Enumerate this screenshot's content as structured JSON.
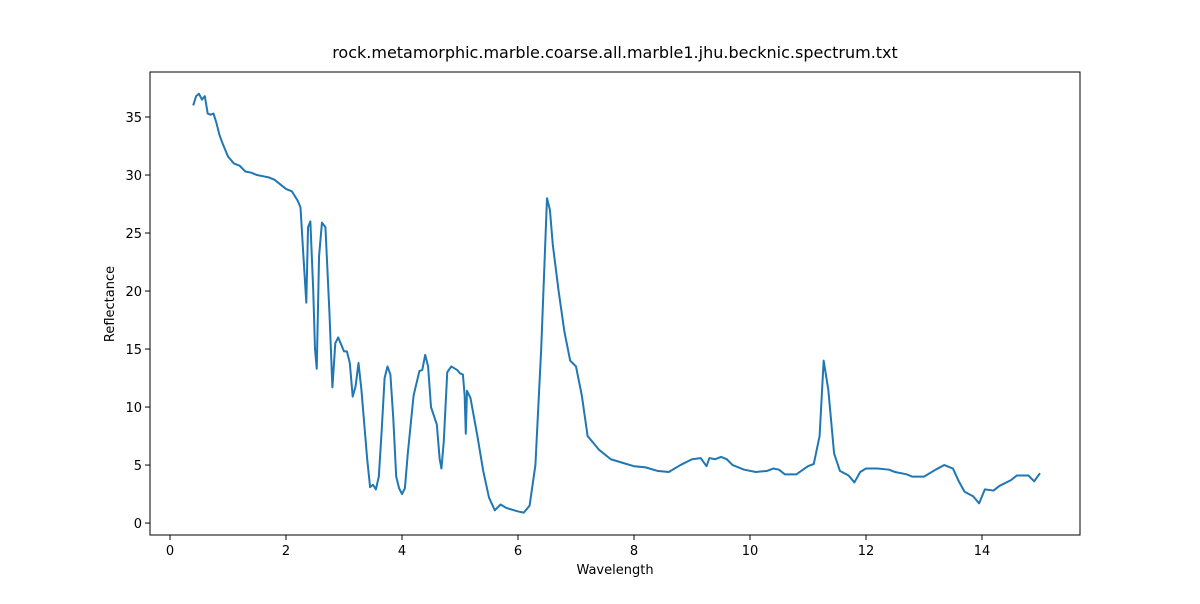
{
  "chart_data": {
    "type": "line",
    "title": "rock.metamorphic.marble.coarse.all.marble1.jhu.becknic.spectrum.txt",
    "x_label": "Wavelength",
    "y_label": "Reflectance",
    "xlim": [
      -0.345,
      15.69
    ],
    "ylim": [
      -1.03,
      38.88
    ],
    "xticks": [
      0,
      2,
      4,
      6,
      8,
      10,
      12,
      14
    ],
    "yticks": [
      0,
      5,
      10,
      15,
      20,
      25,
      30,
      35
    ],
    "series": [
      {
        "color": "#1f77b4",
        "x": [
          0.4,
          0.45,
          0.5,
          0.55,
          0.6,
          0.65,
          0.7,
          0.75,
          0.8,
          0.85,
          0.9,
          1.0,
          1.1,
          1.2,
          1.3,
          1.4,
          1.5,
          1.6,
          1.7,
          1.8,
          1.9,
          2.0,
          2.1,
          2.2,
          2.25,
          2.3,
          2.35,
          2.38,
          2.42,
          2.47,
          2.5,
          2.53,
          2.57,
          2.62,
          2.68,
          2.75,
          2.8,
          2.85,
          2.9,
          3.0,
          3.05,
          3.1,
          3.15,
          3.2,
          3.25,
          3.3,
          3.4,
          3.45,
          3.5,
          3.55,
          3.6,
          3.65,
          3.7,
          3.75,
          3.8,
          3.85,
          3.9,
          3.95,
          4.0,
          4.05,
          4.1,
          4.2,
          4.3,
          4.35,
          4.4,
          4.45,
          4.5,
          4.6,
          4.65,
          4.68,
          4.72,
          4.78,
          4.85,
          4.95,
          5.0,
          5.05,
          5.08,
          5.1,
          5.12,
          5.18,
          5.3,
          5.4,
          5.5,
          5.6,
          5.7,
          5.8,
          6.0,
          6.1,
          6.2,
          6.3,
          6.4,
          6.5,
          6.55,
          6.6,
          6.7,
          6.8,
          6.9,
          7.0,
          7.1,
          7.2,
          7.4,
          7.6,
          7.8,
          8.0,
          8.2,
          8.4,
          8.6,
          8.8,
          9.0,
          9.15,
          9.25,
          9.3,
          9.4,
          9.5,
          9.6,
          9.7,
          9.9,
          10.1,
          10.3,
          10.4,
          10.5,
          10.6,
          10.8,
          11.0,
          11.1,
          11.2,
          11.27,
          11.35,
          11.45,
          11.55,
          11.7,
          11.8,
          11.9,
          12.0,
          12.2,
          12.4,
          12.5,
          12.7,
          12.8,
          13.0,
          13.2,
          13.35,
          13.5,
          13.6,
          13.7,
          13.85,
          13.95,
          14.05,
          14.2,
          14.3,
          14.5,
          14.6,
          14.8,
          14.9,
          15.0
        ],
        "values": [
          36,
          36.8,
          37,
          36.5,
          36.8,
          35.3,
          35.2,
          35.3,
          34.5,
          33.5,
          32.8,
          31.6,
          31,
          30.8,
          30.3,
          30.2,
          30,
          29.9,
          29.8,
          29.6,
          29.2,
          28.8,
          28.6,
          27.8,
          27.2,
          23,
          19,
          25.5,
          26,
          20,
          15,
          13.3,
          23,
          25.9,
          25.5,
          18,
          11.7,
          15.5,
          16,
          14.8,
          14.8,
          13.8,
          10.9,
          11.8,
          13.8,
          11.5,
          5.5,
          3.1,
          3.3,
          2.9,
          4,
          8,
          12.5,
          13.5,
          12.8,
          9,
          4,
          3,
          2.5,
          3,
          6,
          11,
          13.1,
          13.2,
          14.5,
          13.5,
          10,
          8.5,
          5.5,
          4.7,
          7,
          13,
          13.5,
          13.2,
          12.9,
          12.8,
          11,
          7.7,
          11.4,
          10.8,
          7.5,
          4.5,
          2.2,
          1.1,
          1.6,
          1.3,
          1.0,
          0.9,
          1.5,
          5,
          15,
          28,
          27,
          24,
          20,
          16.5,
          14,
          13.5,
          11,
          7.5,
          6.3,
          5.5,
          5.2,
          4.9,
          4.8,
          4.5,
          4.4,
          5,
          5.5,
          5.6,
          4.9,
          5.6,
          5.5,
          5.7,
          5.5,
          5,
          4.6,
          4.4,
          4.5,
          4.7,
          4.6,
          4.2,
          4.2,
          4.9,
          5.1,
          7.5,
          14,
          11.5,
          6,
          4.5,
          4.1,
          3.5,
          4.4,
          4.7,
          4.7,
          4.6,
          4.4,
          4.2,
          4.0,
          4.0,
          4.6,
          5.0,
          4.7,
          3.6,
          2.7,
          2.3,
          1.7,
          2.9,
          2.8,
          3.2,
          3.7,
          4.1,
          4.1,
          3.6,
          4.3
        ]
      }
    ]
  }
}
